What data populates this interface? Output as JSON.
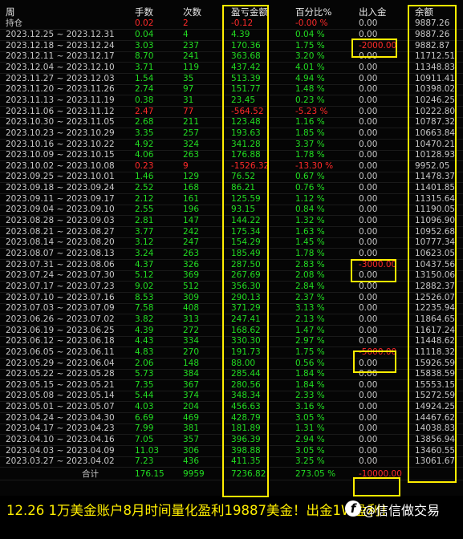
{
  "header": {
    "columns": [
      "周",
      "手数",
      "次数",
      "盈亏金额",
      "百分比%",
      "出入金",
      "余额"
    ]
  },
  "holding": [
    "持仓",
    "0.02",
    "2",
    "-0.12",
    "-0.00 %",
    "0.00",
    "9887.26"
  ],
  "rows": [
    [
      "2023.12.25 ~ 2023.12.31",
      "0.04",
      "4",
      "4.39",
      "0.04 %",
      "0.00",
      "9887.26"
    ],
    [
      "2023.12.18 ~ 2023.12.24",
      "3.03",
      "237",
      "170.36",
      "1.75 %",
      "-2000.00",
      "9882.87"
    ],
    [
      "2023.12.11 ~ 2023.12.17",
      "8.70",
      "241",
      "363.68",
      "3.20 %",
      "0.00",
      "11712.51"
    ],
    [
      "2023.12.04 ~ 2023.12.10",
      "3.71",
      "119",
      "437.42",
      "4.01 %",
      "0.00",
      "11348.83"
    ],
    [
      "2023.11.27 ~ 2023.12.03",
      "1.54",
      "35",
      "513.39",
      "4.94 %",
      "0.00",
      "10911.41"
    ],
    [
      "2023.11.20 ~ 2023.11.26",
      "2.74",
      "97",
      "151.77",
      "1.48 %",
      "0.00",
      "10398.02"
    ],
    [
      "2023.11.13 ~ 2023.11.19",
      "0.38",
      "31",
      "23.45",
      "0.23 %",
      "0.00",
      "10246.25"
    ],
    [
      "2023.11.06 ~ 2023.11.12",
      "2.47",
      "77",
      "-564.52",
      "-5.23 %",
      "0.00",
      "10222.80"
    ],
    [
      "2023.10.30 ~ 2023.11.05",
      "2.68",
      "211",
      "123.48",
      "1.16 %",
      "0.00",
      "10787.32"
    ],
    [
      "2023.10.23 ~ 2023.10.29",
      "3.35",
      "257",
      "193.63",
      "1.85 %",
      "0.00",
      "10663.84"
    ],
    [
      "2023.10.16 ~ 2023.10.22",
      "4.92",
      "324",
      "341.28",
      "3.37 %",
      "0.00",
      "10470.21"
    ],
    [
      "2023.10.09 ~ 2023.10.15",
      "4.06",
      "263",
      "176.88",
      "1.78 %",
      "0.00",
      "10128.93"
    ],
    [
      "2023.10.02 ~ 2023.10.08",
      "0.23",
      "9",
      "-1526.32",
      "-13.30 %",
      "0.00",
      "9952.05"
    ],
    [
      "2023.09.25 ~ 2023.10.01",
      "1.46",
      "129",
      "76.52",
      "0.67 %",
      "0.00",
      "11478.37"
    ],
    [
      "2023.09.18 ~ 2023.09.24",
      "2.52",
      "168",
      "86.21",
      "0.76 %",
      "0.00",
      "11401.85"
    ],
    [
      "2023.09.11 ~ 2023.09.17",
      "2.12",
      "161",
      "125.59",
      "1.12 %",
      "0.00",
      "11315.64"
    ],
    [
      "2023.09.04 ~ 2023.09.10",
      "2.55",
      "196",
      "93.15",
      "0.84 %",
      "0.00",
      "11190.05"
    ],
    [
      "2023.08.28 ~ 2023.09.03",
      "2.81",
      "147",
      "144.22",
      "1.32 %",
      "0.00",
      "11096.90"
    ],
    [
      "2023.08.21 ~ 2023.08.27",
      "3.77",
      "242",
      "175.34",
      "1.63 %",
      "0.00",
      "10952.68"
    ],
    [
      "2023.08.14 ~ 2023.08.20",
      "3.12",
      "247",
      "154.29",
      "1.45 %",
      "0.00",
      "10777.34"
    ],
    [
      "2023.08.07 ~ 2023.08.13",
      "3.24",
      "263",
      "185.49",
      "1.78 %",
      "0.00",
      "10623.05"
    ],
    [
      "2023.07.31 ~ 2023.08.06",
      "4.37",
      "326",
      "287.50",
      "2.83 %",
      "-3000.00",
      "10437.56"
    ],
    [
      "2023.07.24 ~ 2023.07.30",
      "5.12",
      "369",
      "267.69",
      "2.08 %",
      "0.00",
      "13150.06"
    ],
    [
      "2023.07.17 ~ 2023.07.23",
      "9.02",
      "512",
      "356.30",
      "2.84 %",
      "0.00",
      "12882.37"
    ],
    [
      "2023.07.10 ~ 2023.07.16",
      "8.53",
      "309",
      "290.13",
      "2.37 %",
      "0.00",
      "12526.07"
    ],
    [
      "2023.07.03 ~ 2023.07.09",
      "7.58",
      "408",
      "371.29",
      "3.13 %",
      "0.00",
      "12235.94"
    ],
    [
      "2023.06.26 ~ 2023.07.02",
      "3.82",
      "313",
      "247.41",
      "2.13 %",
      "0.00",
      "11864.65"
    ],
    [
      "2023.06.19 ~ 2023.06.25",
      "4.39",
      "272",
      "168.62",
      "1.47 %",
      "0.00",
      "11617.24"
    ],
    [
      "2023.06.12 ~ 2023.06.18",
      "4.43",
      "334",
      "330.30",
      "2.97 %",
      "0.00",
      "11448.62"
    ],
    [
      "2023.06.05 ~ 2023.06.11",
      "4.83",
      "270",
      "191.73",
      "1.75 %",
      "-5000.00",
      "11118.32"
    ],
    [
      "2023.05.29 ~ 2023.06.04",
      "2.06",
      "148",
      "88.00",
      "0.56 %",
      "0.00",
      "15926.59"
    ],
    [
      "2023.05.22 ~ 2023.05.28",
      "5.73",
      "384",
      "285.44",
      "1.84 %",
      "0.00",
      "15838.59"
    ],
    [
      "2023.05.15 ~ 2023.05.21",
      "7.35",
      "367",
      "280.56",
      "1.84 %",
      "0.00",
      "15553.15"
    ],
    [
      "2023.05.08 ~ 2023.05.14",
      "5.44",
      "374",
      "348.34",
      "2.33 %",
      "0.00",
      "15272.59"
    ],
    [
      "2023.05.01 ~ 2023.05.07",
      "4.03",
      "204",
      "456.63",
      "3.16 %",
      "0.00",
      "14924.25"
    ],
    [
      "2023.04.24 ~ 2023.04.30",
      "6.69",
      "469",
      "428.79",
      "3.05 %",
      "0.00",
      "14467.62"
    ],
    [
      "2023.04.17 ~ 2023.04.23",
      "7.99",
      "381",
      "181.89",
      "1.31 %",
      "0.00",
      "14038.83"
    ],
    [
      "2023.04.10 ~ 2023.04.16",
      "7.05",
      "357",
      "396.39",
      "2.94 %",
      "0.00",
      "13856.94"
    ],
    [
      "2023.04.03 ~ 2023.04.09",
      "11.03",
      "306",
      "398.88",
      "3.05 %",
      "0.00",
      "13460.55"
    ],
    [
      "2023.03.27 ~ 2023.04.02",
      "7.23",
      "436",
      "411.35",
      "3.25 %",
      "0.00",
      "13061.67"
    ]
  ],
  "total": [
    "合计",
    "176.15",
    "9959",
    "7236.82",
    "273.05 %",
    "-10000.00"
  ],
  "caption": "12.26 1万美金账户8月时间量化盈利19887美金！出金1W盈利！",
  "watermark": "@信信做交易"
}
